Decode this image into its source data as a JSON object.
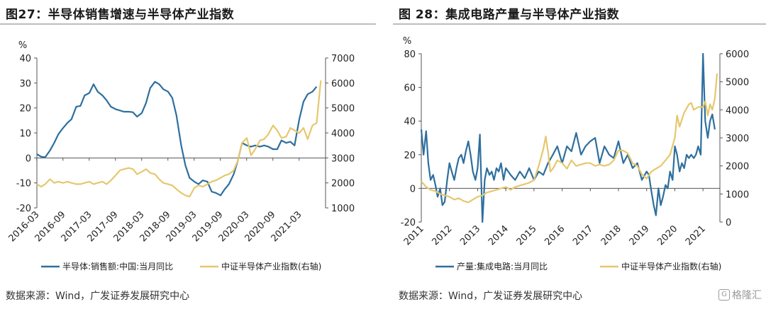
{
  "left": {
    "title": "图27：半导体销售增速与半导体产业指数",
    "source": "数据来源：Wind，广发证券发展研究中心",
    "chart_data": {
      "type": "line",
      "y_unit": "%",
      "y_left_ticks": [
        "40",
        "30",
        "20",
        "10",
        "0",
        "-10",
        "-20"
      ],
      "ylim_left": [
        -20,
        40
      ],
      "y_right_ticks": [
        "7000",
        "6000",
        "5000",
        "4000",
        "3000",
        "2000",
        "1000"
      ],
      "ylim_right": [
        1000,
        7000
      ],
      "x_ticks": [
        "2016-03",
        "2016-09",
        "2017-03",
        "2017-09",
        "2018-03",
        "2018-09",
        "2019-03",
        "2019-09",
        "2020-03",
        "2020-09",
        "2021-03"
      ],
      "x_range": [
        2016.17,
        2021.67
      ],
      "grid": false,
      "legend_position": "bottom",
      "series": [
        {
          "name": "半导体:销售额:中国:当月同比",
          "axis": "left",
          "color": "#2e6f9e",
          "x": [
            2016.17,
            2016.25,
            2016.33,
            2016.42,
            2016.5,
            2016.58,
            2016.67,
            2016.75,
            2016.83,
            2016.92,
            2017.0,
            2017.08,
            2017.17,
            2017.25,
            2017.33,
            2017.42,
            2017.5,
            2017.58,
            2017.67,
            2017.75,
            2017.83,
            2017.92,
            2018.0,
            2018.08,
            2018.17,
            2018.25,
            2018.33,
            2018.42,
            2018.5,
            2018.58,
            2018.67,
            2018.75,
            2018.83,
            2018.92,
            2019.0,
            2019.08,
            2019.17,
            2019.25,
            2019.33,
            2019.42,
            2019.5,
            2019.58,
            2019.67,
            2019.75,
            2019.83,
            2019.92,
            2020.0,
            2020.08,
            2020.17,
            2020.25,
            2020.33,
            2020.42,
            2020.5,
            2020.58,
            2020.67,
            2020.75,
            2020.83,
            2020.92,
            2021.0,
            2021.08,
            2021.17,
            2021.25,
            2021.33,
            2021.42,
            2021.5
          ],
          "values": [
            1.5,
            0.5,
            0.3,
            3,
            6,
            9.5,
            12,
            14,
            15.5,
            20.5,
            20.8,
            25,
            26,
            29.5,
            26.5,
            25,
            23,
            20.5,
            19.5,
            19,
            18.5,
            18.5,
            18.3,
            16.5,
            18,
            22,
            28,
            30.5,
            29.5,
            27.5,
            26.5,
            24,
            17,
            5,
            -3,
            -8,
            -9.5,
            -10.5,
            -9,
            -9.5,
            -13.5,
            -14,
            -15,
            -12.5,
            -10.5,
            -6.5,
            -1,
            6,
            5,
            4.5,
            5,
            4.5,
            5,
            4.5,
            3.5,
            3.5,
            7,
            6,
            6.5,
            5,
            15.5,
            22.5,
            25.5,
            26.5,
            28.5
          ]
        },
        {
          "name": "中证半导体产业指数(右轴)",
          "axis": "right",
          "color": "#e6c76e",
          "x": [
            2016.17,
            2016.25,
            2016.33,
            2016.42,
            2016.5,
            2016.58,
            2016.67,
            2016.75,
            2016.83,
            2016.92,
            2017.0,
            2017.08,
            2017.17,
            2017.25,
            2017.33,
            2017.42,
            2017.5,
            2017.58,
            2017.67,
            2017.75,
            2017.83,
            2017.92,
            2018.0,
            2018.08,
            2018.17,
            2018.25,
            2018.33,
            2018.42,
            2018.5,
            2018.58,
            2018.67,
            2018.75,
            2018.83,
            2018.92,
            2019.0,
            2019.08,
            2019.17,
            2019.25,
            2019.33,
            2019.42,
            2019.5,
            2019.58,
            2019.67,
            2019.75,
            2019.83,
            2019.92,
            2020.0,
            2020.08,
            2020.17,
            2020.25,
            2020.33,
            2020.42,
            2020.5,
            2020.58,
            2020.67,
            2020.75,
            2020.83,
            2020.92,
            2021.0,
            2021.08,
            2021.17,
            2021.25,
            2021.33,
            2021.42,
            2021.5,
            2021.58
          ],
          "values": [
            1950,
            1850,
            1950,
            2150,
            2000,
            2050,
            2000,
            2050,
            2000,
            1950,
            1950,
            2000,
            2050,
            1950,
            2000,
            2050,
            1950,
            2100,
            2300,
            2500,
            2550,
            2600,
            2550,
            2350,
            2450,
            2550,
            2400,
            2350,
            2150,
            2000,
            1950,
            1900,
            1750,
            1600,
            1500,
            1450,
            1800,
            1900,
            1850,
            1950,
            2050,
            2100,
            2200,
            2300,
            2350,
            2500,
            2900,
            3600,
            3800,
            3100,
            3350,
            3700,
            3750,
            3950,
            4300,
            4100,
            3800,
            3850,
            4200,
            4100,
            4000,
            4200,
            3750,
            4300,
            4400,
            6100
          ]
        }
      ]
    }
  },
  "right": {
    "title": "图 28：集成电路产量与半导体产业指数",
    "source": "数据来源：Wind，广发证券发展研究中心",
    "watermark": "格隆汇",
    "watermark_icon": "G",
    "chart_data": {
      "type": "line",
      "y_unit": "%",
      "y_left_ticks": [
        "80",
        "60",
        "40",
        "20",
        "0",
        "-20"
      ],
      "ylim_left": [
        -20,
        80
      ],
      "y_right_ticks": [
        "6000",
        "5000",
        "4000",
        "3000",
        "2000",
        "1000",
        "0"
      ],
      "ylim_right": [
        0,
        6000
      ],
      "x_ticks": [
        "2011",
        "2012",
        "2013",
        "2014",
        "2015",
        "2016",
        "2017",
        "2018",
        "2019",
        "2020",
        "2021"
      ],
      "x_range": [
        2011,
        2021.6
      ],
      "grid": false,
      "legend_position": "bottom",
      "series": [
        {
          "name": "产量:集成电路:当月同比",
          "axis": "left",
          "color": "#2e6f9e",
          "x": [
            2011.0,
            2011.08,
            2011.17,
            2011.25,
            2011.33,
            2011.42,
            2011.5,
            2011.58,
            2011.67,
            2011.75,
            2011.83,
            2011.92,
            2012.0,
            2012.08,
            2012.17,
            2012.25,
            2012.33,
            2012.42,
            2012.5,
            2012.58,
            2012.67,
            2012.75,
            2012.83,
            2012.92,
            2013.0,
            2013.08,
            2013.17,
            2013.25,
            2013.33,
            2013.42,
            2013.5,
            2013.58,
            2013.67,
            2013.75,
            2013.83,
            2013.92,
            2014.0,
            2014.17,
            2014.33,
            2014.5,
            2014.67,
            2014.83,
            2015.0,
            2015.17,
            2015.33,
            2015.5,
            2015.67,
            2015.83,
            2016.0,
            2016.17,
            2016.33,
            2016.5,
            2016.67,
            2016.83,
            2017.0,
            2017.17,
            2017.33,
            2017.5,
            2017.67,
            2017.83,
            2018.0,
            2018.17,
            2018.33,
            2018.5,
            2018.67,
            2018.83,
            2019.0,
            2019.08,
            2019.17,
            2019.25,
            2019.33,
            2019.42,
            2019.5,
            2019.58,
            2019.67,
            2019.75,
            2019.83,
            2019.92,
            2020.0,
            2020.08,
            2020.17,
            2020.25,
            2020.33,
            2020.42,
            2020.5,
            2020.58,
            2020.67,
            2020.75,
            2020.83,
            2020.92,
            2021.0,
            2021.08,
            2021.17,
            2021.25,
            2021.33,
            2021.42
          ],
          "values": [
            35,
            20,
            34,
            15,
            5,
            8,
            2,
            -5,
            0,
            -10,
            -8,
            5,
            15,
            10,
            5,
            12,
            18,
            20,
            15,
            22,
            28,
            20,
            10,
            5,
            12,
            32,
            -20,
            5,
            12,
            8,
            10,
            5,
            12,
            10,
            15,
            5,
            12,
            8,
            5,
            10,
            6,
            12,
            5,
            10,
            8,
            15,
            20,
            25,
            15,
            25,
            22,
            33,
            20,
            25,
            28,
            30,
            15,
            25,
            20,
            18,
            28,
            15,
            20,
            12,
            15,
            5,
            10,
            8,
            -2,
            -10,
            -16,
            0,
            -10,
            -5,
            2,
            0,
            10,
            5,
            25,
            20,
            10,
            15,
            12,
            20,
            18,
            20,
            18,
            20,
            25,
            20,
            80,
            40,
            30,
            40,
            44,
            35
          ]
        },
        {
          "name": "中证半导体产业指数(右轴)",
          "axis": "right",
          "color": "#e6c76e",
          "x": [
            2011.0,
            2011.17,
            2011.33,
            2011.5,
            2011.67,
            2011.83,
            2012.0,
            2012.17,
            2012.33,
            2012.5,
            2012.67,
            2012.83,
            2013.0,
            2013.17,
            2013.33,
            2013.5,
            2013.67,
            2013.83,
            2014.0,
            2014.17,
            2014.33,
            2014.5,
            2014.67,
            2014.83,
            2015.0,
            2015.17,
            2015.33,
            2015.42,
            2015.5,
            2015.58,
            2015.67,
            2015.83,
            2016.0,
            2016.17,
            2016.33,
            2016.5,
            2016.67,
            2016.83,
            2017.0,
            2017.17,
            2017.33,
            2017.5,
            2017.67,
            2017.83,
            2018.0,
            2018.17,
            2018.33,
            2018.5,
            2018.67,
            2018.83,
            2019.0,
            2019.17,
            2019.33,
            2019.5,
            2019.67,
            2019.83,
            2020.0,
            2020.08,
            2020.17,
            2020.33,
            2020.5,
            2020.58,
            2020.67,
            2020.83,
            2021.0,
            2021.08,
            2021.17,
            2021.25,
            2021.33,
            2021.42,
            2021.5
          ],
          "values": [
            1450,
            1250,
            1150,
            1100,
            1000,
            950,
            900,
            800,
            850,
            750,
            700,
            800,
            900,
            950,
            1050,
            1100,
            1150,
            1200,
            1250,
            1150,
            1250,
            1300,
            1350,
            1400,
            1500,
            2000,
            2600,
            3050,
            2500,
            1800,
            1900,
            2200,
            2100,
            1900,
            2200,
            2000,
            2050,
            2100,
            2100,
            2000,
            2050,
            2000,
            2050,
            2200,
            2550,
            2550,
            2450,
            2100,
            2000,
            1700,
            1550,
            1800,
            1900,
            2000,
            2200,
            2400,
            3000,
            3800,
            3400,
            3900,
            4200,
            4250,
            4000,
            4100,
            4100,
            4300,
            3800,
            4200,
            4000,
            4400,
            5300
          ]
        }
      ]
    }
  }
}
